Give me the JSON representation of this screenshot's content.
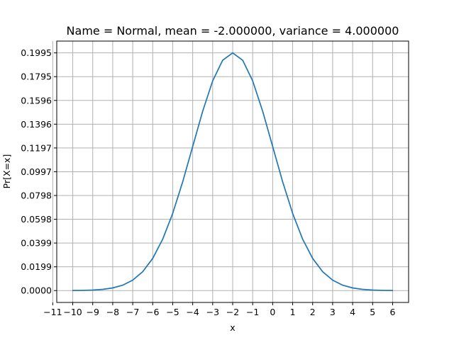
{
  "chart_data": {
    "type": "line",
    "title": "Name = Normal, mean = -2.000000, variance = 4.000000",
    "xlabel": "x",
    "ylabel": "Pr[X=x]",
    "xlim": [
      -10.8,
      6.8
    ],
    "ylim": [
      -0.00997,
      0.2094
    ],
    "x_ticks": [
      -11,
      -10,
      -9,
      -8,
      -7,
      -6,
      -5,
      -4,
      -3,
      -2,
      -1,
      0,
      1,
      2,
      3,
      4,
      5,
      6
    ],
    "x_tick_labels": [
      "−11",
      "−10",
      "−9",
      "−8",
      "−7",
      "−6",
      "−5",
      "−4",
      "−3",
      "−2",
      "−1",
      "0",
      "1",
      "2",
      "3",
      "4",
      "5",
      "6"
    ],
    "y_ticks": [
      0.0,
      0.01995,
      0.0399,
      0.05985,
      0.0798,
      0.09975,
      0.1197,
      0.13965,
      0.1596,
      0.17955,
      0.1995
    ],
    "y_tick_labels": [
      "0.0000",
      "0.0199",
      "0.0399",
      "0.0598",
      "0.0798",
      "0.0997",
      "0.1197",
      "0.1396",
      "0.1596",
      "0.1795",
      "0.1995"
    ],
    "grid": true,
    "series": [
      {
        "color": "#1f77b4",
        "x": [
          -10,
          -9.5,
          -9,
          -8.5,
          -8,
          -7.5,
          -7,
          -6.5,
          -6,
          -5.5,
          -5,
          -4.5,
          -4,
          -3.5,
          -3,
          -2.5,
          -2,
          -1.5,
          -1,
          -0.5,
          0,
          0.5,
          1,
          1.5,
          2,
          2.5,
          3,
          3.5,
          4,
          4.5,
          5,
          5.5,
          6
        ],
        "y": [
          6.7e-05,
          0.000176,
          0.000436,
          0.001014,
          0.002216,
          0.004547,
          0.008764,
          0.015869,
          0.026995,
          0.043139,
          0.064759,
          0.091325,
          0.120985,
          0.150569,
          0.176033,
          0.193334,
          0.199471,
          0.193334,
          0.176033,
          0.150569,
          0.120985,
          0.091325,
          0.064759,
          0.043139,
          0.026995,
          0.015869,
          0.008764,
          0.004547,
          0.002216,
          0.001014,
          0.000436,
          0.000176,
          6.7e-05
        ]
      }
    ]
  }
}
